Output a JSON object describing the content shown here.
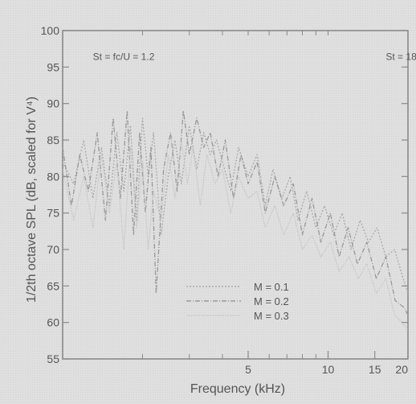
{
  "chart_data": {
    "type": "line",
    "title": "",
    "xlabel": "Frequency (kHz)",
    "ylabel": "1/2th octave SPL (dB, scaled for V⁴)",
    "x_scale": "log",
    "xlim": [
      1,
      20
    ],
    "ylim": [
      55,
      100
    ],
    "x_ticks": [
      {
        "value": 5,
        "label": "5"
      },
      {
        "value": 10,
        "label": "10"
      },
      {
        "value": 15,
        "label": "15"
      },
      {
        "value": 20,
        "label": "20"
      }
    ],
    "y_ticks": [
      {
        "value": 55,
        "label": "55"
      },
      {
        "value": 60,
        "label": "60"
      },
      {
        "value": 65,
        "label": "65"
      },
      {
        "value": 70,
        "label": "70"
      },
      {
        "value": 75,
        "label": "75"
      },
      {
        "value": 80,
        "label": "80"
      },
      {
        "value": 85,
        "label": "85"
      },
      {
        "value": 90,
        "label": "90"
      },
      {
        "value": 95,
        "label": "95"
      },
      {
        "value": 100,
        "label": "100"
      }
    ],
    "grid": false,
    "legend_position": "bottom-right",
    "annotations": [
      {
        "text": "St = fc/U = 1.2",
        "x": 1.3,
        "y": 96
      },
      {
        "text": "St = 18",
        "x": 16.5,
        "y": 96
      }
    ],
    "series": [
      {
        "name": "M = 0.1",
        "color": "#aaaaaa",
        "dash": "2,2",
        "x": [
          1.0,
          1.1,
          1.2,
          1.3,
          1.4,
          1.5,
          1.6,
          1.7,
          1.8,
          1.9,
          2.0,
          2.1,
          2.2,
          2.35,
          2.5,
          2.65,
          2.8,
          3.0,
          3.2,
          3.4,
          3.6,
          3.8,
          4.0,
          4.3,
          4.6,
          5.0,
          5.4,
          5.8,
          6.2,
          6.7,
          7.2,
          7.7,
          8.3,
          9.0,
          9.7,
          10.5,
          11.3,
          12.2,
          13.2,
          14.2,
          15.3,
          16.5,
          17.8,
          19.2,
          20.0
        ],
        "y": [
          82,
          79,
          85,
          77,
          84,
          76,
          86,
          78,
          87,
          74,
          88,
          80,
          86,
          72,
          80,
          85,
          79,
          87,
          81,
          86,
          83,
          85,
          82,
          78,
          84,
          80,
          83,
          76,
          81,
          77,
          80,
          74,
          78,
          73,
          76,
          72,
          75,
          70,
          74,
          71,
          73,
          69,
          70,
          66,
          64
        ]
      },
      {
        "name": "M = 0.2",
        "color": "#999999",
        "dash": "6,2,1,2",
        "x": [
          1.0,
          1.08,
          1.16,
          1.25,
          1.35,
          1.45,
          1.55,
          1.65,
          1.75,
          1.85,
          1.95,
          2.05,
          2.15,
          2.25,
          2.4,
          2.55,
          2.7,
          2.85,
          3.0,
          3.2,
          3.4,
          3.6,
          3.85,
          4.1,
          4.4,
          4.7,
          5.0,
          5.4,
          5.8,
          6.3,
          6.8,
          7.4,
          8.0,
          8.7,
          9.4,
          10.2,
          11.0,
          11.9,
          12.9,
          14.0,
          15.2,
          16.5,
          17.9,
          19.4,
          20.0
        ],
        "y": [
          84,
          76,
          83,
          78,
          86,
          74,
          88,
          77,
          89,
          72,
          86,
          75,
          84,
          64,
          81,
          86,
          78,
          89,
          83,
          88,
          84,
          86,
          80,
          85,
          77,
          83,
          79,
          82,
          75,
          80,
          76,
          79,
          72,
          77,
          71,
          75,
          69,
          73,
          68,
          71,
          66,
          69,
          63,
          62,
          61
        ]
      },
      {
        "name": "M = 0.3",
        "color": "#c4c4c4",
        "dash": "1,1",
        "x": [
          1.0,
          1.1,
          1.2,
          1.3,
          1.4,
          1.5,
          1.6,
          1.7,
          1.8,
          1.9,
          2.0,
          2.1,
          2.2,
          2.35,
          2.5,
          2.65,
          2.8,
          2.95,
          3.1,
          3.3,
          3.5,
          3.75,
          4.0,
          4.3,
          4.6,
          5.0,
          5.4,
          5.8,
          6.3,
          6.8,
          7.4,
          8.0,
          8.7,
          9.4,
          10.2,
          11.0,
          12.0,
          13.0,
          14.0,
          15.2,
          16.5,
          17.8,
          19.0,
          20.0
        ],
        "y": [
          81,
          74,
          80,
          73,
          83,
          75,
          82,
          70,
          84,
          73,
          82,
          70,
          78,
          74,
          83,
          77,
          85,
          79,
          84,
          76,
          83,
          79,
          81,
          75,
          80,
          77,
          78,
          73,
          76,
          72,
          75,
          70,
          72,
          69,
          71,
          67,
          69,
          66,
          68,
          64,
          66,
          61,
          60,
          59
        ]
      }
    ]
  }
}
